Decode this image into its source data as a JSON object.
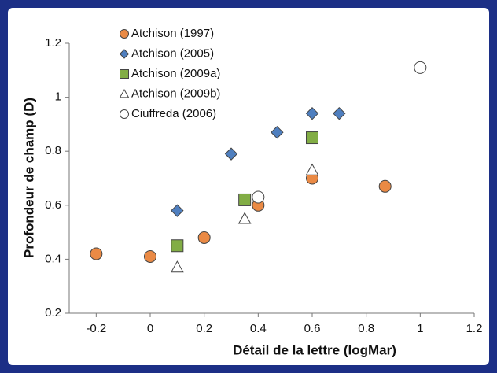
{
  "chart_data": {
    "type": "scatter",
    "x_label": "Détail de la lettre (logMar)",
    "y_label": "Profondeur de champ (D)",
    "xlim": [
      -0.3,
      1.2
    ],
    "xticks": [
      -0.2,
      0,
      0.2,
      0.4,
      0.6,
      0.8,
      1,
      1.2
    ],
    "ylim": [
      0.2,
      1.2
    ],
    "yticks": [
      0.2,
      0.4,
      0.6,
      0.8,
      1,
      1.2
    ],
    "legend": "upper left",
    "series": [
      {
        "name": "Atchison (1997)",
        "marker": "circle",
        "color": "#ea8a45",
        "x": [
          -0.2,
          0,
          0.2,
          0.4,
          0.6,
          0.87
        ],
        "values": [
          0.42,
          0.41,
          0.48,
          0.6,
          0.7,
          0.67
        ]
      },
      {
        "name": "Atchison (2005)",
        "marker": "diamond",
        "color": "#4f7fbf",
        "x": [
          0.1,
          0.3,
          0.47,
          0.6,
          0.7
        ],
        "values": [
          0.58,
          0.79,
          0.87,
          0.94,
          0.94
        ]
      },
      {
        "name": "Atchison (2009a)",
        "marker": "square",
        "color": "#82ad45",
        "x": [
          0.1,
          0.35,
          0.6
        ],
        "values": [
          0.45,
          0.62,
          0.85
        ]
      },
      {
        "name": "Atchison (2009b)",
        "marker": "triangle",
        "color": "#ffffff",
        "x": [
          0.1,
          0.35,
          0.6
        ],
        "values": [
          0.37,
          0.55,
          0.73
        ]
      },
      {
        "name": "Ciuffreda (2006)",
        "marker": "circle",
        "color": "#ffffff",
        "x": [
          0.4,
          1.0
        ],
        "values": [
          0.63,
          1.11
        ]
      }
    ]
  }
}
